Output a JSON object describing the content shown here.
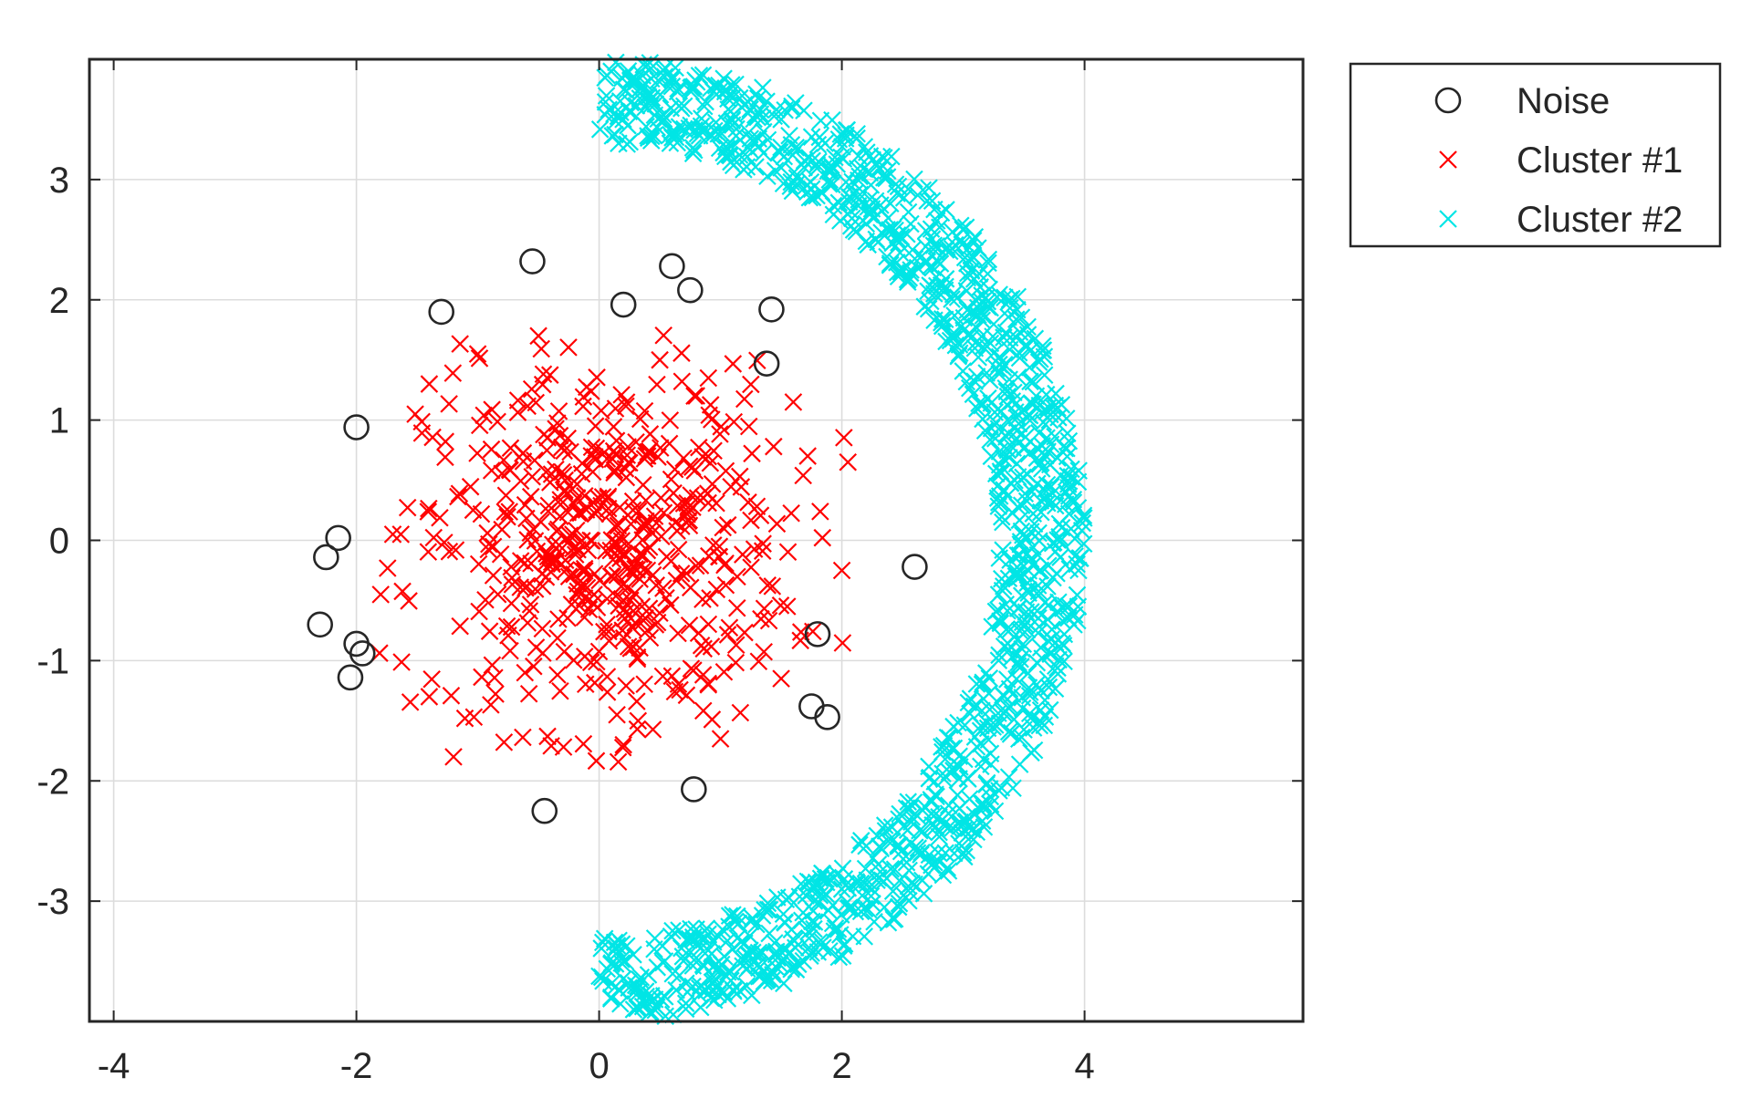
{
  "chart_data": {
    "type": "scatter",
    "title": "",
    "xlabel": "",
    "ylabel": "",
    "xlim": [
      -4.2,
      5.8
    ],
    "ylim": [
      -4,
      4
    ],
    "xticks": [
      -4,
      -2,
      0,
      2,
      4
    ],
    "yticks": [
      -3,
      -2,
      -1,
      0,
      1,
      2,
      3
    ],
    "xtick_labels": [
      "-4",
      "-2",
      "0",
      "2",
      "4"
    ],
    "ytick_labels": [
      "-3",
      "-2",
      "-1",
      "0",
      "1",
      "2",
      "3"
    ],
    "grid": true,
    "legend_position": "outside-top-right",
    "series": [
      {
        "name": "Noise",
        "marker": "circle",
        "color": "#262626",
        "points": [
          [
            -0.55,
            2.32
          ],
          [
            0.6,
            2.28
          ],
          [
            0.75,
            2.08
          ],
          [
            0.2,
            1.96
          ],
          [
            -1.3,
            1.9
          ],
          [
            1.42,
            1.92
          ],
          [
            1.38,
            1.47
          ],
          [
            -2.0,
            0.94
          ],
          [
            -2.15,
            0.02
          ],
          [
            -2.25,
            -0.14
          ],
          [
            2.6,
            -0.22
          ],
          [
            -2.3,
            -0.7
          ],
          [
            -2.0,
            -0.86
          ],
          [
            -1.95,
            -0.94
          ],
          [
            1.8,
            -0.78
          ],
          [
            -2.05,
            -1.14
          ],
          [
            1.75,
            -1.38
          ],
          [
            1.88,
            -1.47
          ],
          [
            0.78,
            -2.07
          ],
          [
            -0.45,
            -2.25
          ]
        ]
      },
      {
        "name": "Cluster #1",
        "marker": "x",
        "color": "#ff0000",
        "center": [
          0.05,
          -0.05
        ],
        "spread": 0.75,
        "count": 520,
        "points": [
          [
            -1.8,
            -0.45
          ],
          [
            -1.7,
            0.05
          ],
          [
            -1.4,
            1.3
          ],
          [
            -1.0,
            1.55
          ],
          [
            -0.5,
            1.7
          ],
          [
            0.5,
            1.5
          ],
          [
            0.9,
            1.35
          ],
          [
            1.6,
            1.15
          ],
          [
            2.05,
            0.65
          ],
          [
            2.0,
            -0.25
          ],
          [
            1.55,
            -0.55
          ],
          [
            1.5,
            -1.15
          ],
          [
            1.0,
            -1.65
          ],
          [
            0.2,
            -1.7
          ],
          [
            -1.2,
            -1.8
          ],
          [
            -1.4,
            -1.3
          ]
        ]
      },
      {
        "name": "Cluster #2",
        "marker": "x",
        "color": "#00e5e5",
        "shape": "half-ring",
        "inner_radius": 3.3,
        "outer_radius": 4.0,
        "count": 1300,
        "points": [
          [
            0.1,
            3.9
          ],
          [
            0.6,
            3.85
          ],
          [
            1.5,
            3.5
          ],
          [
            2.4,
            2.8
          ],
          [
            3.1,
            2.0
          ],
          [
            3.6,
            1.2
          ],
          [
            3.85,
            0.4
          ],
          [
            3.95,
            -0.25
          ],
          [
            3.8,
            -0.9
          ],
          [
            3.4,
            -1.6
          ],
          [
            2.8,
            -2.3
          ],
          [
            2.0,
            -2.9
          ],
          [
            1.1,
            -3.4
          ],
          [
            0.1,
            -3.8
          ]
        ]
      }
    ]
  }
}
